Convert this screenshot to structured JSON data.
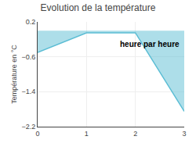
{
  "chart_data": {
    "type": "area",
    "title": "Evolution de la température",
    "ylabel": "Température en °C",
    "annotation": "heure par heure",
    "x": [
      0,
      1,
      2,
      3
    ],
    "values": [
      -0.5,
      -0.05,
      -0.05,
      -1.85
    ],
    "color": "#5bbdd4",
    "xlim": [
      0,
      3
    ],
    "ylim": [
      -2.2,
      0.2
    ],
    "xticks": [
      0,
      1,
      2,
      3
    ],
    "yticks": [
      0.2,
      -0.6,
      -1.4,
      -2.2
    ],
    "grid": true
  }
}
